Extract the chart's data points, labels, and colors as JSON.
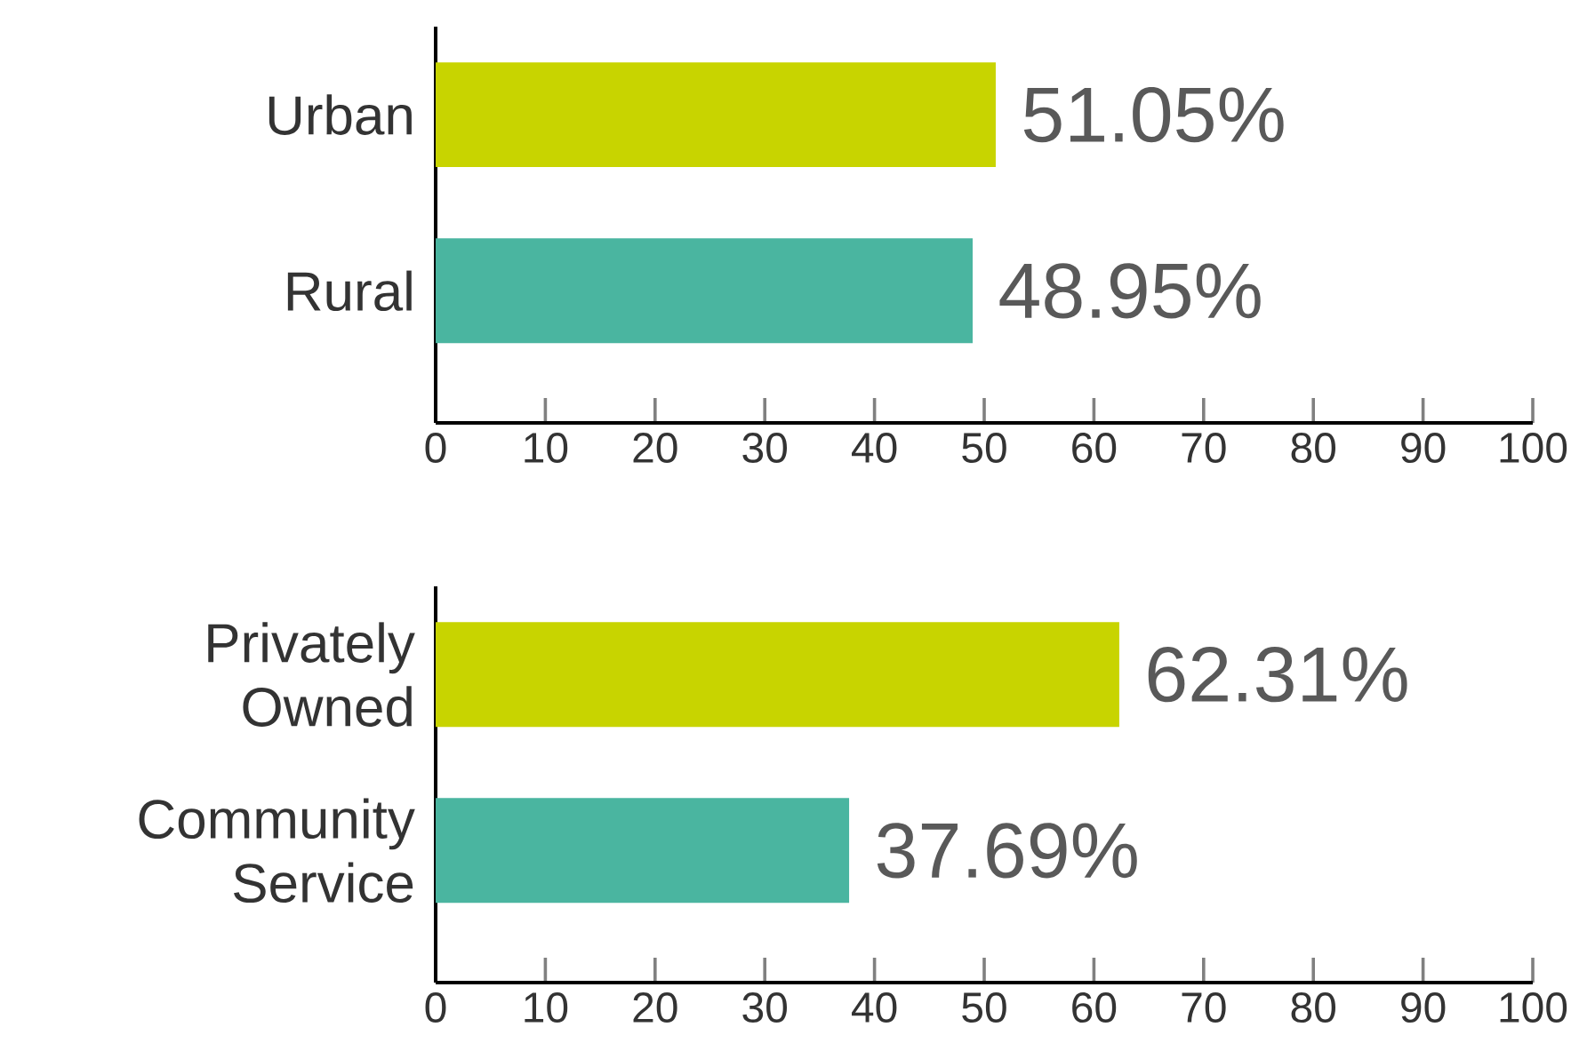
{
  "chart_data": [
    {
      "type": "bar",
      "orientation": "horizontal",
      "categories": [
        "Urban",
        "Rural"
      ],
      "values": [
        51.05,
        48.95
      ],
      "colors": [
        "#c8d400",
        "#4ab5a0"
      ],
      "value_labels": [
        "51.05%",
        "48.95%"
      ],
      "xlim": [
        0,
        100
      ],
      "xticks": [
        0,
        10,
        20,
        30,
        40,
        50,
        60,
        70,
        80,
        90,
        100
      ]
    },
    {
      "type": "bar",
      "orientation": "horizontal",
      "categories": [
        "Privately Owned",
        "Community Service"
      ],
      "values": [
        62.31,
        37.69
      ],
      "colors": [
        "#c8d400",
        "#4ab5a0"
      ],
      "value_labels": [
        "62.31%",
        "37.69%"
      ],
      "xlim": [
        0,
        100
      ],
      "xticks": [
        0,
        10,
        20,
        30,
        40,
        50,
        60,
        70,
        80,
        90,
        100
      ]
    }
  ]
}
